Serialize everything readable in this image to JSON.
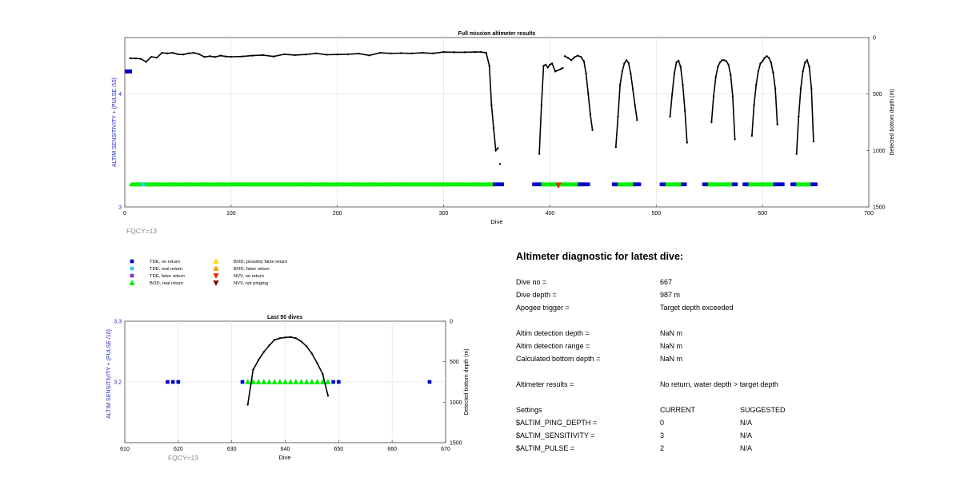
{
  "figure": {
    "fqcy_label": "FQCY=13"
  },
  "chart_data": [
    {
      "type": "scatter",
      "title": "Full mission altimeter results",
      "xlabel": "Dive",
      "ylabel_left": "ALTIM SENSITIVITY + (PULSE /10)",
      "ylabel_right": "Detected bottom depth (m)",
      "xlim": [
        0,
        700
      ],
      "xticks": [
        0,
        100,
        200,
        300,
        400,
        500,
        600,
        700
      ],
      "ylim_left": [
        3,
        4.5
      ],
      "yticks_left": [
        3,
        4
      ],
      "ylim_right": [
        1500,
        0
      ],
      "yticks_right": [
        0,
        500,
        1000,
        1500
      ],
      "grid": true,
      "settings_points": [
        {
          "x_from": 1,
          "x_to": 6,
          "y": 4.2,
          "name": "ALTIM setting"
        }
      ],
      "tde_no_return_dives": [
        [
          348,
          355
        ],
        [
          385,
          390
        ],
        [
          428,
          436
        ],
        [
          460,
          462
        ],
        [
          480,
          484
        ],
        [
          505,
          507
        ],
        [
          525,
          527
        ],
        [
          545,
          547
        ],
        [
          573,
          575
        ],
        [
          583,
          585
        ],
        [
          612,
          619
        ],
        [
          628,
          630
        ],
        [
          647,
          650
        ]
      ],
      "bod_real_return_ranges": [
        [
          6,
          347
        ],
        [
          391,
          430
        ],
        [
          463,
          480
        ],
        [
          508,
          524
        ],
        [
          548,
          572
        ],
        [
          586,
          612
        ],
        [
          631,
          646
        ]
      ],
      "tde_real_return_dives": [
        17
      ],
      "nvv_no_return_dives": [
        408
      ],
      "bottom_depth_segments": [
        {
          "x": [
            5,
            10,
            15,
            20,
            25,
            30,
            35,
            40,
            45,
            50,
            55,
            60,
            65,
            70,
            75,
            80,
            85,
            90,
            95,
            100,
            110,
            120,
            130,
            140,
            150,
            160,
            170,
            180,
            190,
            200,
            210,
            220,
            230,
            240,
            250,
            260,
            270,
            280,
            290,
            300,
            310,
            320,
            330,
            335,
            340,
            343,
            345,
            347,
            349,
            351
          ],
          "y": [
            183,
            185,
            188,
            215,
            170,
            178,
            135,
            140,
            135,
            148,
            150,
            140,
            135,
            148,
            172,
            165,
            172,
            160,
            168,
            170,
            168,
            160,
            155,
            168,
            148,
            155,
            150,
            140,
            152,
            150,
            148,
            142,
            158,
            135,
            140,
            138,
            140,
            135,
            140,
            128,
            130,
            130,
            128,
            128,
            135,
            250,
            600,
            800,
            1000,
            980
          ]
        },
        {
          "x": [
            353
          ],
          "y": [
            1120
          ]
        },
        {
          "x": [
            390,
            392,
            394,
            396,
            398,
            400,
            402,
            405,
            410,
            412
          ],
          "y": [
            1030,
            600,
            250,
            240,
            265,
            240,
            230,
            300,
            280,
            270
          ]
        },
        {
          "x": [
            414,
            417,
            420,
            423,
            426,
            429,
            432,
            434,
            436,
            438,
            440
          ],
          "y": [
            165,
            180,
            200,
            175,
            160,
            170,
            210,
            320,
            500,
            680,
            820
          ]
        },
        {
          "x": [
            462,
            464,
            466,
            468,
            470,
            472,
            474,
            476,
            478,
            480,
            482
          ],
          "y": [
            970,
            700,
            420,
            300,
            230,
            200,
            225,
            320,
            460,
            600,
            730
          ]
        },
        {
          "x": [
            513,
            515,
            517,
            519,
            521,
            523,
            525,
            527,
            529
          ],
          "y": [
            700,
            500,
            320,
            220,
            205,
            260,
            420,
            650,
            930
          ]
        },
        {
          "x": [
            552,
            554,
            556,
            558,
            560,
            562,
            564,
            566,
            568,
            570,
            572,
            574
          ],
          "y": [
            750,
            520,
            350,
            260,
            220,
            200,
            200,
            210,
            240,
            330,
            520,
            900
          ]
        },
        {
          "x": [
            590,
            592,
            594,
            596,
            598,
            600,
            602,
            604,
            606,
            608,
            610,
            612,
            614
          ],
          "y": [
            870,
            600,
            420,
            300,
            230,
            210,
            180,
            165,
            180,
            220,
            310,
            450,
            770
          ]
        },
        {
          "x": [
            632,
            634,
            636,
            638,
            640,
            642,
            644,
            646,
            648
          ],
          "y": [
            1030,
            700,
            450,
            300,
            220,
            200,
            260,
            450,
            920
          ]
        }
      ]
    },
    {
      "type": "scatter",
      "title": "Last 50 dives",
      "xlabel": "Dive",
      "ylabel_left": "ALTIM SENSITIVITY + (PULSE /10)",
      "ylabel_right": "Detected bottom depth (m)",
      "xlim": [
        610,
        670
      ],
      "xticks": [
        610,
        620,
        630,
        640,
        650,
        660,
        670
      ],
      "ylim_left": [
        3.1,
        3.3
      ],
      "yticks_left": [
        3.2,
        3.3
      ],
      "ylim_right": [
        1500,
        0
      ],
      "yticks_right": [
        0,
        500,
        1000,
        1500
      ],
      "grid": true,
      "tde_no_return_dives": [
        618,
        619,
        620,
        632,
        649,
        650,
        667
      ],
      "bod_real_return_dives": [
        633,
        634,
        635,
        636,
        637,
        638,
        639,
        640,
        641,
        642,
        643,
        644,
        645,
        646,
        647,
        648
      ],
      "bottom_depth": {
        "x": [
          633,
          634,
          635,
          636,
          637,
          638,
          639,
          640,
          641,
          642,
          643,
          644,
          645,
          646,
          647,
          648
        ],
        "y": [
          1030,
          600,
          480,
          380,
          300,
          230,
          210,
          200,
          195,
          210,
          250,
          310,
          400,
          520,
          650,
          920
        ]
      }
    }
  ],
  "legend": [
    {
      "label": "TDE, no return",
      "marker": "square",
      "color": "#0000CC"
    },
    {
      "label": "TDE, real return",
      "marker": "square",
      "color": "#33CCFF"
    },
    {
      "label": "TDE, false return",
      "marker": "square",
      "color": "#7733CC"
    },
    {
      "label": "BOD, real return",
      "marker": "triangle-up",
      "color": "#00EE00"
    },
    {
      "label": "BOD, possibly false return",
      "marker": "triangle-up",
      "color": "#FFD700"
    },
    {
      "label": "BOD, false return",
      "marker": "triangle-up",
      "color": "#FF9900"
    },
    {
      "label": "NVV, no return",
      "marker": "triangle-down",
      "color": "#EE2200"
    },
    {
      "label": "NVV, not pinging",
      "marker": "triangle-down",
      "color": "#880000"
    }
  ],
  "diagnostic": {
    "title": "Altimeter diagnostic for latest dive:",
    "dive_no_label": "Dive no =",
    "dive_no_value": "667",
    "dive_depth_label": "Dive depth =",
    "dive_depth_value": "987 m",
    "apogee_label": "Apogee trigger =",
    "apogee_value": "Target depth exceeded",
    "detect_depth_label": "Altim detection depth =",
    "detect_depth_value": "NaN m",
    "detect_range_label": "Altim detection range =",
    "detect_range_value": "NaN m",
    "calc_bottom_label": "Calculated bottom depth =",
    "calc_bottom_value": "NaN m",
    "results_label": "Altimeter results =",
    "results_value": "No return, water depth > target depth",
    "settings_header": "Settings",
    "current_header": "CURRENT",
    "suggested_header": "SUGGESTED",
    "settings": [
      {
        "name": "$ALTIM_PING_DEPTH =",
        "current": "0",
        "suggested": "N/A"
      },
      {
        "name": "$ALTIM_SENSITIVITY =",
        "current": "3",
        "suggested": "N/A"
      },
      {
        "name": "$ALTIM_PULSE =",
        "current": "2",
        "suggested": "N/A"
      }
    ]
  }
}
